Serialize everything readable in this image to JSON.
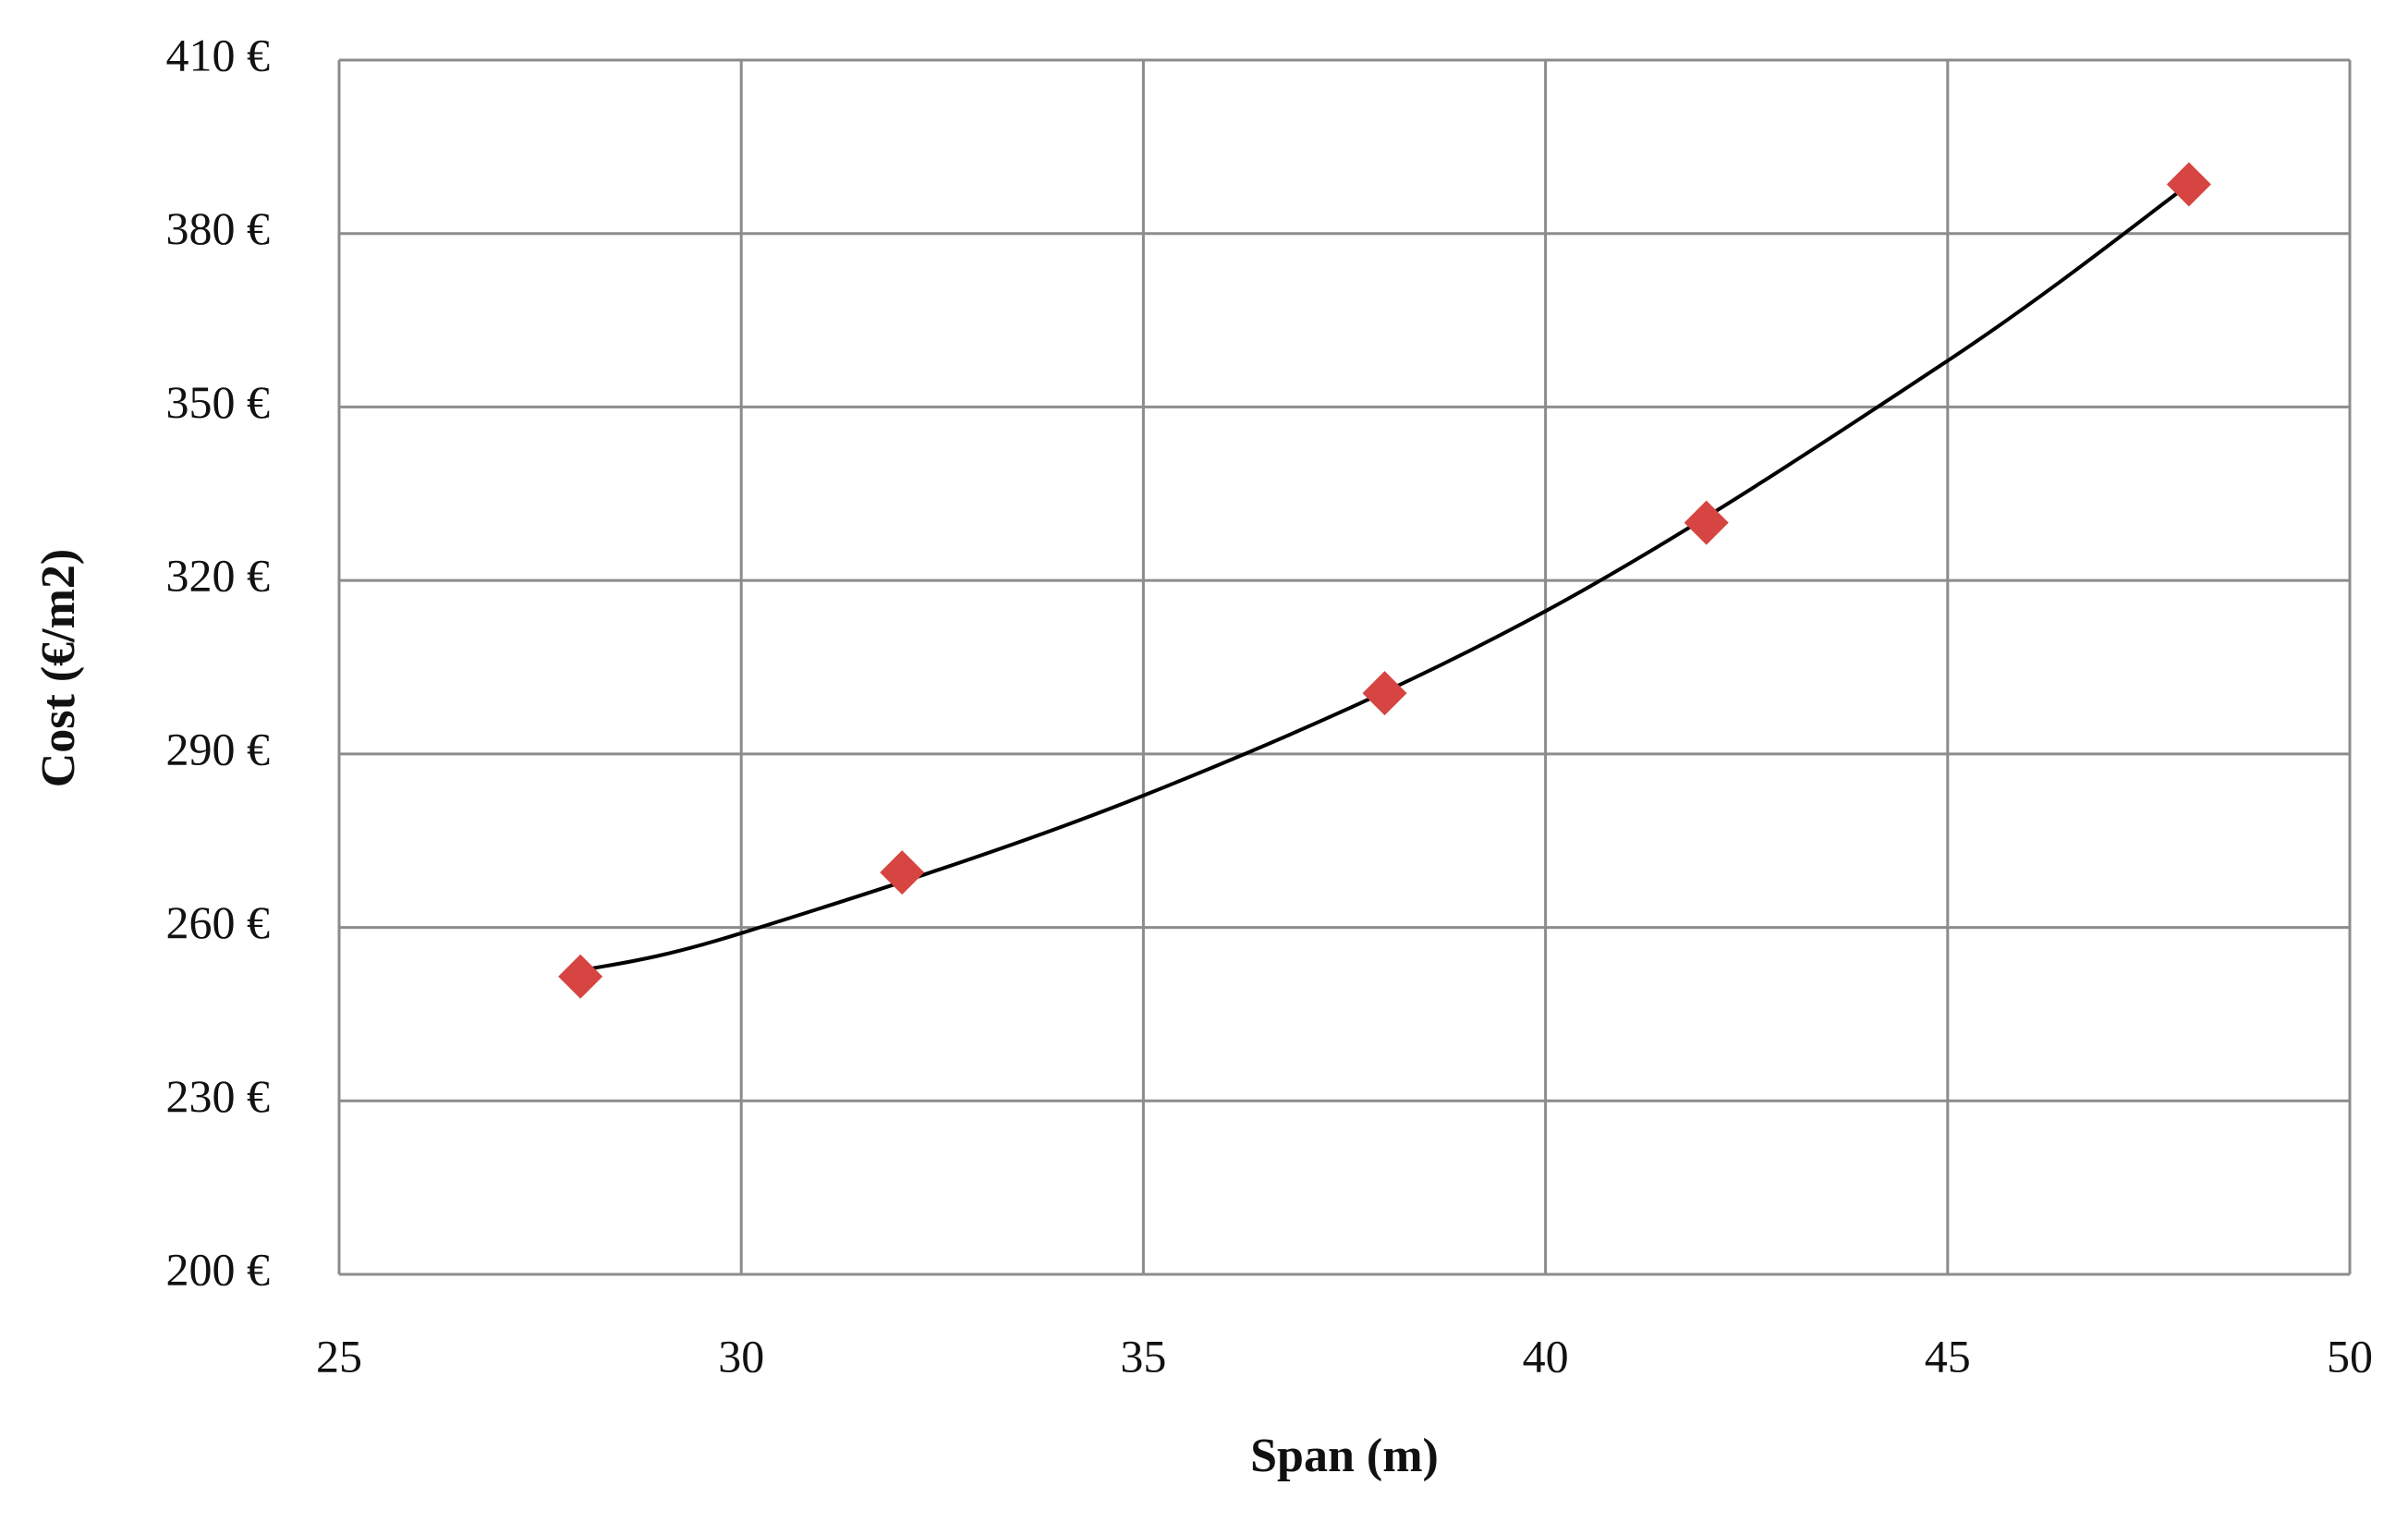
{
  "chart_data": {
    "type": "scatter",
    "x_label": "Span (m)",
    "y_label": "Cost (€/m2)",
    "series": [
      {
        "color": "#d64541",
        "marker": "diamond",
        "x": [
          28,
          32,
          38,
          42,
          48
        ],
        "values": [
          251.5,
          269.5,
          300.5,
          330,
          388.5
        ]
      }
    ],
    "trendline": {
      "color": "#000000",
      "x": [
        28,
        30,
        35,
        40,
        45,
        48
      ],
      "values": [
        252.5,
        259,
        282.8,
        314.7,
        358,
        388.5
      ]
    },
    "xlim": [
      25,
      50
    ],
    "xticks": [
      25,
      30,
      35,
      40,
      45,
      50
    ],
    "ylim": [
      200,
      410
    ],
    "yticks": [
      {
        "value": 200,
        "label": "200 €"
      },
      {
        "value": 230,
        "label": "230 €"
      },
      {
        "value": 260,
        "label": "260 €"
      },
      {
        "value": 290,
        "label": "290 €"
      },
      {
        "value": 320,
        "label": "320 €"
      },
      {
        "value": 350,
        "label": "350 €"
      },
      {
        "value": 380,
        "label": "380 €"
      },
      {
        "value": 410,
        "label": "410 €"
      }
    ],
    "grid": true
  }
}
